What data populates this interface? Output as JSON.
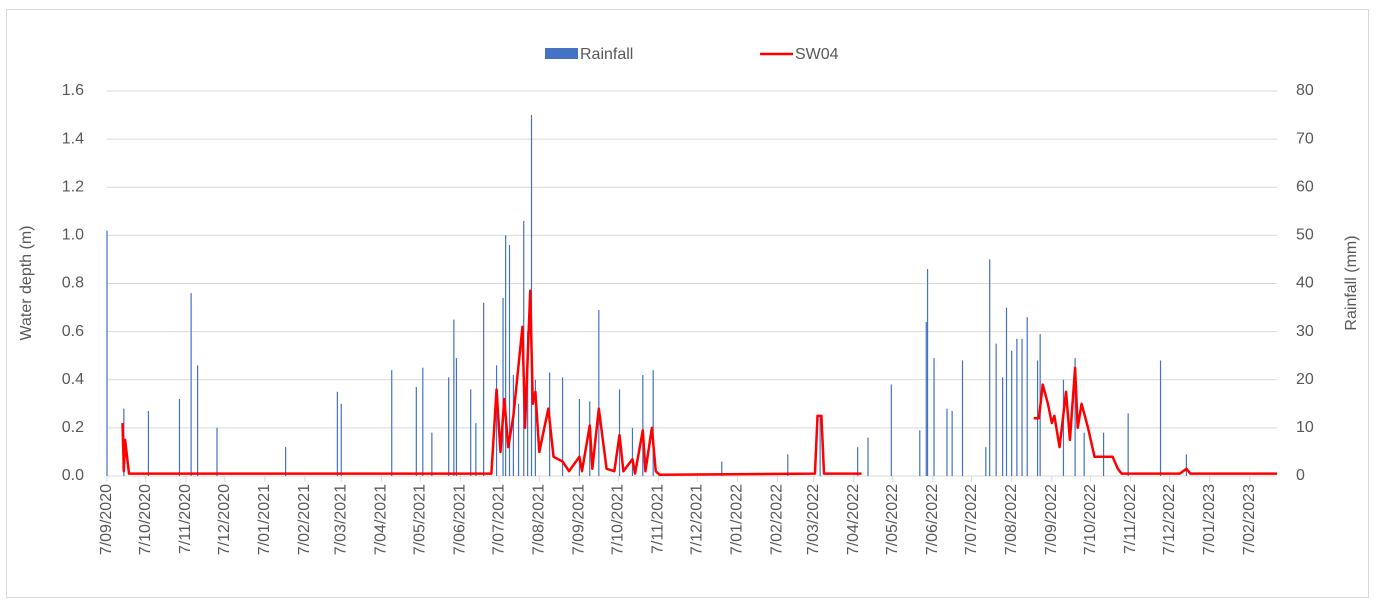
{
  "chart_data": {
    "type": "combo",
    "ylabel": "Water depth (m)",
    "y2label": "Rainfall (mm)",
    "legend": "top",
    "grid": true,
    "xlim": [
      "2020-09-07",
      "2023-02-28"
    ],
    "xticks": [
      {
        "value": "2020-09-07",
        "label": "7/09/2020"
      },
      {
        "value": "2020-10-07",
        "label": "7/10/2020"
      },
      {
        "value": "2020-11-07",
        "label": "7/11/2020"
      },
      {
        "value": "2020-12-07",
        "label": "7/12/2020"
      },
      {
        "value": "2021-01-07",
        "label": "7/01/2021"
      },
      {
        "value": "2021-02-07",
        "label": "7/02/2021"
      },
      {
        "value": "2021-03-07",
        "label": "7/03/2021"
      },
      {
        "value": "2021-04-07",
        "label": "7/04/2021"
      },
      {
        "value": "2021-05-07",
        "label": "7/05/2021"
      },
      {
        "value": "2021-06-07",
        "label": "7/06/2021"
      },
      {
        "value": "2021-07-07",
        "label": "7/07/2021"
      },
      {
        "value": "2021-08-07",
        "label": "7/08/2021"
      },
      {
        "value": "2021-09-07",
        "label": "7/09/2021"
      },
      {
        "value": "2021-10-07",
        "label": "7/10/2021"
      },
      {
        "value": "2021-11-07",
        "label": "7/11/2021"
      },
      {
        "value": "2021-12-07",
        "label": "7/12/2021"
      },
      {
        "value": "2022-01-07",
        "label": "7/01/2022"
      },
      {
        "value": "2022-02-07",
        "label": "7/02/2022"
      },
      {
        "value": "2022-03-07",
        "label": "7/03/2022"
      },
      {
        "value": "2022-04-07",
        "label": "7/04/2022"
      },
      {
        "value": "2022-05-07",
        "label": "7/05/2022"
      },
      {
        "value": "2022-06-07",
        "label": "7/06/2022"
      },
      {
        "value": "2022-07-07",
        "label": "7/07/2022"
      },
      {
        "value": "2022-08-07",
        "label": "7/08/2022"
      },
      {
        "value": "2022-09-07",
        "label": "7/09/2022"
      },
      {
        "value": "2022-10-07",
        "label": "7/10/2022"
      },
      {
        "value": "2022-11-07",
        "label": "7/11/2022"
      },
      {
        "value": "2022-12-07",
        "label": "7/12/2022"
      },
      {
        "value": "2023-01-07",
        "label": "7/01/2023"
      },
      {
        "value": "2023-02-07",
        "label": "7/02/2023"
      }
    ],
    "ylim": [
      0,
      1.6
    ],
    "yticks": [
      {
        "value": 0,
        "label": "0.0"
      },
      0.2,
      0.4,
      0.6,
      0.8,
      {
        "value": 1,
        "label": "1.0"
      },
      1.2,
      1.4,
      1.6
    ],
    "y2lim": [
      0,
      80
    ],
    "y2ticks": [
      0,
      10,
      20,
      30,
      40,
      50,
      60,
      70,
      80
    ],
    "series": [
      {
        "name": "Rainfall",
        "type": "bar",
        "axis": "y2",
        "color": "#4472c4",
        "x": [
          "2020-09-07",
          "2020-09-20",
          "2020-10-09",
          "2020-11-02",
          "2020-11-11",
          "2020-11-16",
          "2020-12-01",
          "2021-01-23",
          "2021-03-04",
          "2021-03-07",
          "2021-04-15",
          "2021-05-04",
          "2021-05-09",
          "2021-05-16",
          "2021-05-29",
          "2021-06-02",
          "2021-06-04",
          "2021-06-15",
          "2021-06-19",
          "2021-06-25",
          "2021-07-05",
          "2021-07-10",
          "2021-07-12",
          "2021-07-15",
          "2021-07-18",
          "2021-07-22",
          "2021-07-26",
          "2021-07-29",
          "2021-08-01",
          "2021-08-04",
          "2021-08-15",
          "2021-08-25",
          "2021-09-07",
          "2021-09-15",
          "2021-09-22",
          "2021-10-08",
          "2021-10-18",
          "2021-10-26",
          "2021-11-03",
          "2021-12-26",
          "2022-02-15",
          "2022-03-12",
          "2022-04-10",
          "2022-04-18",
          "2022-05-06",
          "2022-05-28",
          "2022-06-02",
          "2022-06-03",
          "2022-06-08",
          "2022-06-18",
          "2022-06-22",
          "2022-06-30",
          "2022-07-18",
          "2022-07-21",
          "2022-07-26",
          "2022-07-31",
          "2022-08-03",
          "2022-08-07",
          "2022-08-11",
          "2022-08-15",
          "2022-08-19",
          "2022-08-27",
          "2022-08-29",
          "2022-09-16",
          "2022-09-25",
          "2022-10-02",
          "2022-10-17",
          "2022-11-05",
          "2022-11-30",
          "2022-12-20"
        ],
        "values": [
          51,
          14,
          13.5,
          16,
          38,
          23,
          10,
          6,
          17.5,
          15,
          22,
          18.5,
          22.5,
          9,
          20.5,
          32.5,
          24.5,
          18,
          11,
          36,
          23,
          37,
          50,
          48,
          21,
          15,
          53,
          30,
          75,
          20,
          21.5,
          20.5,
          16,
          15.5,
          34.5,
          18,
          10,
          21,
          22,
          3,
          4.5,
          12.5,
          6,
          8,
          19,
          9.5,
          32,
          43,
          24.5,
          14,
          13.5,
          24,
          6,
          45,
          27.5,
          20.5,
          35,
          26,
          28.5,
          28.5,
          33,
          24,
          29.5,
          20,
          24.5,
          9,
          9,
          13,
          24,
          4.5
        ]
      },
      {
        "name": "SW04",
        "type": "line",
        "color": "#ff0000",
        "x": [
          "2020-09-19",
          "2020-09-20",
          "2020-09-21",
          "2020-09-24",
          "2020-12-01",
          "2021-03-07",
          "2021-07-01",
          "2021-07-05",
          "2021-07-08",
          "2021-07-11",
          "2021-07-14",
          "2021-07-18",
          "2021-07-25",
          "2021-07-27",
          "2021-07-31",
          "2021-08-02",
          "2021-08-04",
          "2021-08-07",
          "2021-08-14",
          "2021-08-18",
          "2021-08-25",
          "2021-08-30",
          "2021-09-07",
          "2021-09-09",
          "2021-09-15",
          "2021-09-17",
          "2021-09-22",
          "2021-09-28",
          "2021-10-04",
          "2021-10-08",
          "2021-10-11",
          "2021-10-18",
          "2021-10-20",
          "2021-10-26",
          "2021-10-28",
          "2021-11-02",
          "2021-11-05",
          "2021-11-08",
          "2022-03-08",
          "2022-03-10",
          "2022-03-13",
          "2022-03-15",
          "2022-04-13",
          "2022-06-01",
          "2022-08-24",
          "2022-08-28",
          "2022-08-31",
          "2022-09-04",
          "2022-09-07",
          "2022-09-09",
          "2022-09-13",
          "2022-09-18",
          "2022-09-21",
          "2022-09-25",
          "2022-09-27",
          "2022-09-30",
          "2022-10-05",
          "2022-10-10",
          "2022-10-24",
          "2022-10-28",
          "2022-10-31",
          "2022-12-15",
          "2022-12-20",
          "2022-12-23",
          "2023-02-28"
        ],
        "values": [
          0.22,
          0.02,
          0.15,
          0.01,
          0.01,
          0.01,
          0.01,
          0.36,
          0.1,
          0.32,
          0.12,
          0.25,
          0.62,
          0.2,
          0.77,
          0.3,
          0.35,
          0.1,
          0.28,
          0.08,
          0.06,
          0.02,
          0.08,
          0.02,
          0.21,
          0.03,
          0.28,
          0.03,
          0.02,
          0.17,
          0.02,
          0.07,
          0.01,
          0.19,
          0.02,
          0.2,
          0.02,
          0.005,
          0.01,
          0.25,
          0.25,
          0.01,
          0.01,
          null,
          0.24,
          0.24,
          0.38,
          0.3,
          0.22,
          0.25,
          0.12,
          0.35,
          0.15,
          0.45,
          0.2,
          0.3,
          0.2,
          0.08,
          0.08,
          0.03,
          0.01,
          0.01,
          0.03,
          0.01,
          0.01
        ]
      }
    ]
  }
}
